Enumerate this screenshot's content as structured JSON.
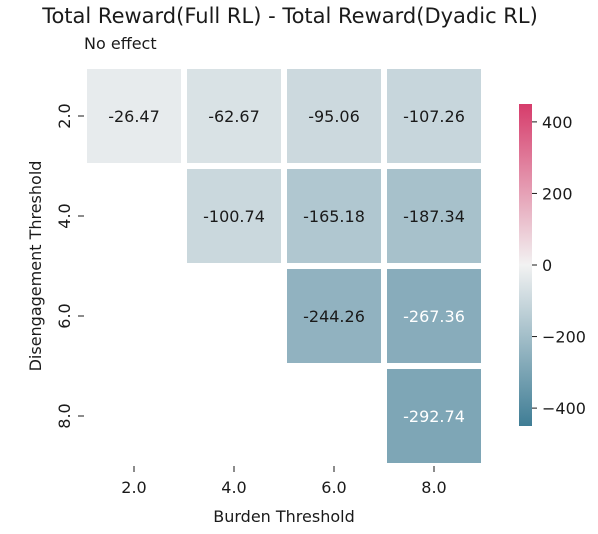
{
  "chart_data": {
    "type": "heatmap",
    "title": "Total Reward(Full RL) - Total Reward(Dyadic RL)",
    "annotation": "No effect",
    "xlabel": "Burden Threshold",
    "ylabel": "Disengagement Threshold",
    "x_categories": [
      "2.0",
      "4.0",
      "6.0",
      "8.0"
    ],
    "y_categories": [
      "2.0",
      "4.0",
      "6.0",
      "8.0"
    ],
    "values": [
      [
        -26.47,
        -62.67,
        -95.06,
        -107.26
      ],
      [
        null,
        -100.74,
        -165.18,
        -187.34
      ],
      [
        null,
        null,
        -244.26,
        -267.36
      ],
      [
        null,
        null,
        null,
        -292.74
      ]
    ],
    "value_labels": [
      [
        "-26.47",
        "-62.67",
        "-95.06",
        "-107.26"
      ],
      [
        null,
        "-100.74",
        "-165.18",
        "-187.34"
      ],
      [
        null,
        null,
        "-244.26",
        "-267.36"
      ],
      [
        null,
        null,
        null,
        "-292.74"
      ]
    ],
    "colorbar": {
      "range": [
        -450,
        450
      ],
      "ticks": [
        400,
        200,
        0,
        -200,
        -400
      ],
      "tick_labels": [
        "400",
        "200",
        "0",
        "−200",
        "−400"
      ],
      "color_low": "#3f7d95",
      "color_mid": "#f2f2f2",
      "color_high": "#d63c6b"
    },
    "grid": false,
    "legend": "colorbar-right"
  }
}
